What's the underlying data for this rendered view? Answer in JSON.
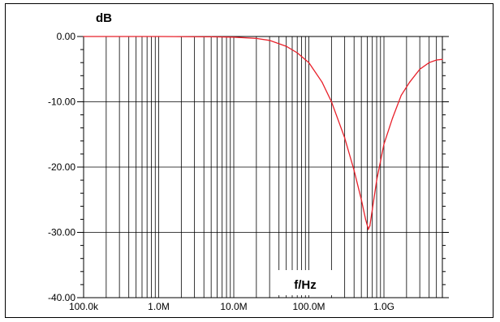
{
  "chart_data": {
    "type": "line",
    "title": "",
    "xlabel": "f/Hz",
    "ylabel": "dB",
    "x_scale": "log",
    "xlim": [
      100000,
      6000000000
    ],
    "ylim": [
      -40,
      0
    ],
    "x_ticks": [
      100000,
      1000000,
      10000000,
      100000000,
      1000000000
    ],
    "x_tick_labels": [
      "100.0k",
      "1.0M",
      "10.0M",
      "100.0M",
      "1.0G"
    ],
    "y_ticks": [
      0,
      -10,
      -20,
      -30,
      -40
    ],
    "y_tick_labels": [
      "0.00",
      "-10.00",
      "-20.00",
      "-30.00",
      "-40.00"
    ],
    "grid": true,
    "series_color": "#e8202a",
    "series": [
      {
        "name": "",
        "x": [
          100000,
          1000000,
          5000000,
          10000000,
          20000000,
          30000000,
          50000000,
          70000000,
          100000000,
          150000000,
          200000000,
          300000000,
          400000000,
          500000000,
          570000000,
          620000000,
          650000000,
          700000000,
          800000000,
          1000000000,
          1300000000,
          1700000000,
          2200000000,
          3000000000,
          4000000000,
          5000000000,
          6000000000
        ],
        "y": [
          0,
          0,
          -0.05,
          -0.1,
          -0.3,
          -0.6,
          -1.5,
          -2.5,
          -4.0,
          -7.0,
          -10.0,
          -15.5,
          -20.5,
          -25.0,
          -28.0,
          -29.5,
          -29.0,
          -26.5,
          -22.0,
          -16.5,
          -12.5,
          -9.0,
          -7.0,
          -5.0,
          -4.0,
          -3.6,
          -3.5
        ]
      }
    ]
  }
}
